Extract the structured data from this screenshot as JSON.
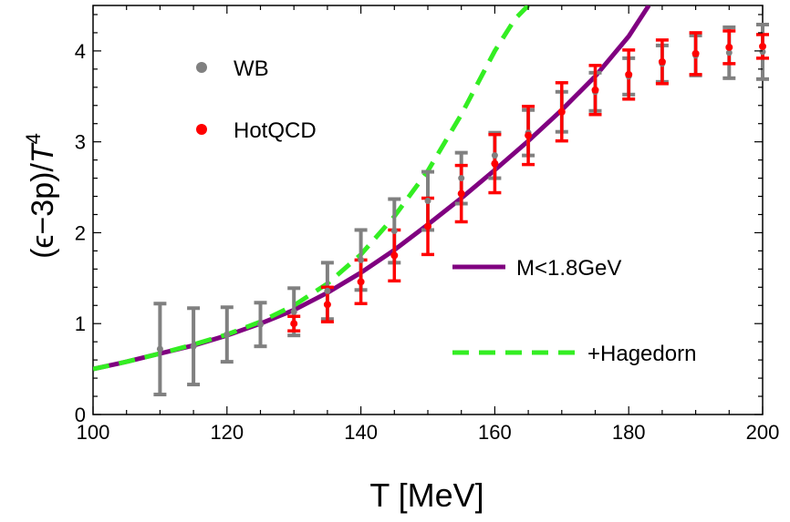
{
  "chart_data": {
    "type": "scatter",
    "title": "",
    "xlabel": "T [MeV]",
    "ylabel_parts": [
      "(ϵ−3p)/",
      "T",
      "4"
    ],
    "xlim": [
      100,
      200
    ],
    "ylim": [
      0,
      4.5
    ],
    "x_ticks": [
      "100",
      "120",
      "140",
      "160",
      "180",
      "200"
    ],
    "y_ticks": [
      "0",
      "1",
      "2",
      "3",
      "4"
    ],
    "grid": false,
    "series": [
      {
        "name": "WB",
        "kind": "points_with_errors",
        "color": "#808080",
        "points": [
          {
            "x": 110,
            "y": 0.72,
            "err": 0.5
          },
          {
            "x": 115,
            "y": 0.75,
            "err": 0.42
          },
          {
            "x": 120,
            "y": 0.88,
            "err": 0.3
          },
          {
            "x": 125,
            "y": 0.99,
            "err": 0.24
          },
          {
            "x": 130,
            "y": 1.13,
            "err": 0.26
          },
          {
            "x": 135,
            "y": 1.36,
            "err": 0.31
          },
          {
            "x": 140,
            "y": 1.7,
            "err": 0.33
          },
          {
            "x": 145,
            "y": 2.02,
            "err": 0.35
          },
          {
            "x": 150,
            "y": 2.35,
            "err": 0.32
          },
          {
            "x": 155,
            "y": 2.6,
            "err": 0.28
          },
          {
            "x": 160,
            "y": 2.85,
            "err": 0.25
          },
          {
            "x": 165,
            "y": 3.1,
            "err": 0.25
          },
          {
            "x": 170,
            "y": 3.33,
            "err": 0.22
          },
          {
            "x": 175,
            "y": 3.55,
            "err": 0.21
          },
          {
            "x": 180,
            "y": 3.72,
            "err": 0.2
          },
          {
            "x": 185,
            "y": 3.86,
            "err": 0.2
          },
          {
            "x": 190,
            "y": 3.95,
            "err": 0.22
          },
          {
            "x": 195,
            "y": 3.98,
            "err": 0.28
          },
          {
            "x": 200,
            "y": 3.99,
            "err": 0.3
          }
        ]
      },
      {
        "name": "HotQCD",
        "kind": "points_with_errors",
        "color": "#ff0000",
        "points": [
          {
            "x": 130,
            "y": 1.0,
            "err": 0.08
          },
          {
            "x": 135,
            "y": 1.21,
            "err": 0.19
          },
          {
            "x": 140,
            "y": 1.46,
            "err": 0.24
          },
          {
            "x": 145,
            "y": 1.75,
            "err": 0.28
          },
          {
            "x": 150,
            "y": 2.07,
            "err": 0.31
          },
          {
            "x": 155,
            "y": 2.43,
            "err": 0.31
          },
          {
            "x": 160,
            "y": 2.76,
            "err": 0.32
          },
          {
            "x": 165,
            "y": 3.07,
            "err": 0.32
          },
          {
            "x": 170,
            "y": 3.33,
            "err": 0.32
          },
          {
            "x": 175,
            "y": 3.57,
            "err": 0.27
          },
          {
            "x": 180,
            "y": 3.74,
            "err": 0.27
          },
          {
            "x": 185,
            "y": 3.88,
            "err": 0.24
          },
          {
            "x": 190,
            "y": 3.97,
            "err": 0.23
          },
          {
            "x": 195,
            "y": 4.04,
            "err": 0.18
          },
          {
            "x": 200,
            "y": 4.05,
            "err": 0.13
          }
        ]
      },
      {
        "name": "M<1.8GeV",
        "kind": "line",
        "style": "solid",
        "color": "#800080",
        "x": [
          100,
          105,
          110,
          115,
          120,
          125,
          130,
          135,
          140,
          145,
          150,
          155,
          160,
          165,
          170,
          175,
          180,
          183
        ],
        "y": [
          0.5,
          0.58,
          0.67,
          0.76,
          0.87,
          1.0,
          1.15,
          1.34,
          1.56,
          1.81,
          2.09,
          2.38,
          2.69,
          3.01,
          3.35,
          3.72,
          4.16,
          4.5
        ]
      },
      {
        "name": "+Hagedorn",
        "kind": "line",
        "style": "dashed",
        "color": "#33ee22",
        "x": [
          100,
          105,
          110,
          115,
          120,
          125,
          130,
          135,
          140,
          145,
          150,
          155,
          160,
          163,
          165
        ],
        "y": [
          0.5,
          0.58,
          0.67,
          0.77,
          0.88,
          1.02,
          1.2,
          1.44,
          1.76,
          2.18,
          2.68,
          3.3,
          4.0,
          4.35,
          4.5
        ]
      }
    ],
    "legend": [
      "WB",
      "HotQCD",
      "M<1.8GeV",
      "+Hagedorn"
    ],
    "legend_placement": "inside plot, markers at left, lines at right"
  }
}
